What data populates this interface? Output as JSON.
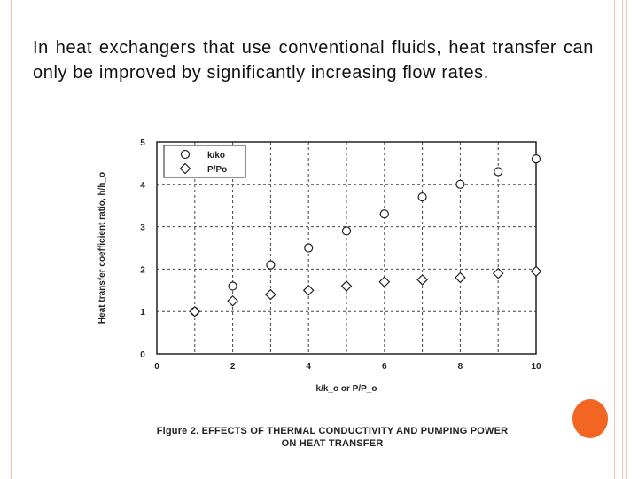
{
  "slide": {
    "body_text": "In heat exchangers that use conventional fluids, heat transfer can only be improved by significantly increasing flow rates."
  },
  "figure": {
    "caption_line1": "Figure 2. EFFECTS OF THERMAL CONDUCTIVITY AND PUMPING POWER",
    "caption_line2": "ON HEAT TRANSFER"
  },
  "colors": {
    "accent": "#f26522",
    "frame": "#f4c4ae"
  },
  "chart_data": {
    "type": "scatter",
    "title": "",
    "xlabel": "k/k_o or P/P_o",
    "ylabel": "Heat transfer coefficient ratio, h/h_o",
    "xlim": [
      0,
      10
    ],
    "ylim": [
      0,
      5
    ],
    "xticks": [
      0,
      2,
      4,
      6,
      8,
      10
    ],
    "yticks": [
      0,
      1,
      2,
      3,
      4,
      5
    ],
    "grid": true,
    "legend_position": "top-left",
    "series": [
      {
        "name": "k/ko",
        "marker": "circle",
        "x": [
          1,
          2,
          3,
          4,
          5,
          6,
          7,
          8,
          9,
          10
        ],
        "y": [
          1.0,
          1.6,
          2.1,
          2.5,
          2.9,
          3.3,
          3.7,
          4.0,
          4.3,
          4.6
        ]
      },
      {
        "name": "P/Po",
        "marker": "diamond",
        "x": [
          1,
          2,
          3,
          4,
          5,
          6,
          7,
          8,
          9,
          10
        ],
        "y": [
          1.0,
          1.25,
          1.4,
          1.5,
          1.6,
          1.7,
          1.75,
          1.8,
          1.9,
          1.95
        ]
      }
    ]
  }
}
